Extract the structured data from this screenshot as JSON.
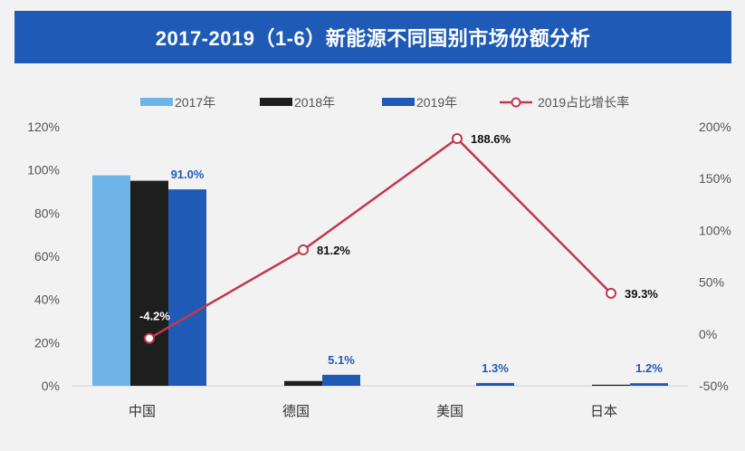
{
  "chart_data": {
    "type": "bar",
    "title": "2017-2019（1-6）新能源不同国别市场份额分析",
    "categories": [
      "中国",
      "德国",
      "美国",
      "日本"
    ],
    "series": [
      {
        "name": "2017年",
        "type": "bar",
        "axis": "left",
        "color": "#6fb4e6",
        "values": [
          97.5,
          0,
          0,
          0
        ]
      },
      {
        "name": "2018年",
        "type": "bar",
        "axis": "left",
        "color": "#1e1e1e",
        "values": [
          95.0,
          2.2,
          0,
          0.5
        ]
      },
      {
        "name": "2019年",
        "type": "bar",
        "axis": "left",
        "color": "#1f5bb6",
        "values": [
          91.0,
          5.1,
          1.3,
          1.2
        ],
        "labels": [
          "91.0%",
          "5.1%",
          "1.3%",
          "1.2%"
        ]
      },
      {
        "name": "2019占比增长率",
        "type": "line",
        "axis": "right",
        "color": "#c0394b",
        "values": [
          -4.2,
          81.2,
          188.6,
          39.3
        ],
        "labels": [
          "-4.2%",
          "81.2%",
          "188.6%",
          "39.3%"
        ]
      }
    ],
    "y_left": {
      "min": 0,
      "max": 120,
      "step": 20,
      "ticks": [
        "0%",
        "20%",
        "40%",
        "60%",
        "80%",
        "100%",
        "120%"
      ]
    },
    "y_right": {
      "min": -50,
      "max": 200,
      "step": 50,
      "ticks": [
        "-50%",
        "0%",
        "50%",
        "100%",
        "150%",
        "200%"
      ]
    },
    "grid": false,
    "legend": "top-center"
  }
}
